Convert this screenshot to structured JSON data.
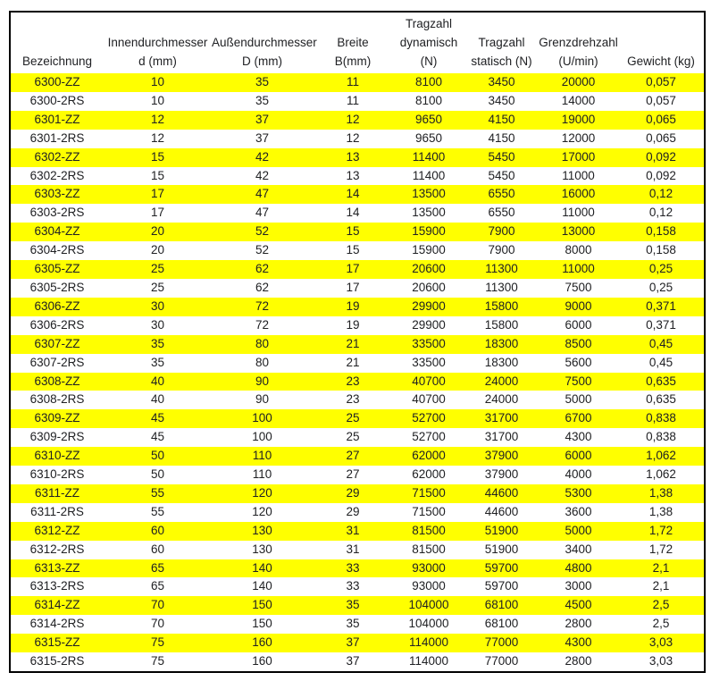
{
  "colors": {
    "highlight": "#ffff00",
    "text": "#202124",
    "border": "#000000",
    "background": "#ffffff"
  },
  "chart_data": {
    "type": "table",
    "title": "",
    "columns": [
      {
        "label": "Bezeichnung"
      },
      {
        "label": "Innendurchmesser\nd (mm)"
      },
      {
        "label": "Außendurchmesser\nD (mm)"
      },
      {
        "label": "Breite\nB(mm)"
      },
      {
        "label": "Tragzahl\ndynamisch\n(N)"
      },
      {
        "label": "Tragzahl\nstatisch (N)"
      },
      {
        "label": "Grenzdrehzahl\n(U/min)"
      },
      {
        "label": "Gewicht (kg)"
      }
    ],
    "rows": [
      {
        "highlight": true,
        "cells": [
          "6300-ZZ",
          "10",
          "35",
          "11",
          "8100",
          "3450",
          "20000",
          "0,057"
        ]
      },
      {
        "highlight": false,
        "cells": [
          "6300-2RS",
          "10",
          "35",
          "11",
          "8100",
          "3450",
          "14000",
          "0,057"
        ]
      },
      {
        "highlight": true,
        "cells": [
          "6301-ZZ",
          "12",
          "37",
          "12",
          "9650",
          "4150",
          "19000",
          "0,065"
        ]
      },
      {
        "highlight": false,
        "cells": [
          "6301-2RS",
          "12",
          "37",
          "12",
          "9650",
          "4150",
          "12000",
          "0,065"
        ]
      },
      {
        "highlight": true,
        "cells": [
          "6302-ZZ",
          "15",
          "42",
          "13",
          "11400",
          "5450",
          "17000",
          "0,092"
        ]
      },
      {
        "highlight": false,
        "cells": [
          "6302-2RS",
          "15",
          "42",
          "13",
          "11400",
          "5450",
          "11000",
          "0,092"
        ]
      },
      {
        "highlight": true,
        "cells": [
          "6303-ZZ",
          "17",
          "47",
          "14",
          "13500",
          "6550",
          "16000",
          "0,12"
        ]
      },
      {
        "highlight": false,
        "cells": [
          "6303-2RS",
          "17",
          "47",
          "14",
          "13500",
          "6550",
          "11000",
          "0,12"
        ]
      },
      {
        "highlight": true,
        "cells": [
          "6304-ZZ",
          "20",
          "52",
          "15",
          "15900",
          "7900",
          "13000",
          "0,158"
        ]
      },
      {
        "highlight": false,
        "cells": [
          "6304-2RS",
          "20",
          "52",
          "15",
          "15900",
          "7900",
          "8000",
          "0,158"
        ]
      },
      {
        "highlight": true,
        "cells": [
          "6305-ZZ",
          "25",
          "62",
          "17",
          "20600",
          "11300",
          "11000",
          "0,25"
        ]
      },
      {
        "highlight": false,
        "cells": [
          "6305-2RS",
          "25",
          "62",
          "17",
          "20600",
          "11300",
          "7500",
          "0,25"
        ]
      },
      {
        "highlight": true,
        "cells": [
          "6306-ZZ",
          "30",
          "72",
          "19",
          "29900",
          "15800",
          "9000",
          "0,371"
        ]
      },
      {
        "highlight": false,
        "cells": [
          "6306-2RS",
          "30",
          "72",
          "19",
          "29900",
          "15800",
          "6000",
          "0,371"
        ]
      },
      {
        "highlight": true,
        "cells": [
          "6307-ZZ",
          "35",
          "80",
          "21",
          "33500",
          "18300",
          "8500",
          "0,45"
        ]
      },
      {
        "highlight": false,
        "cells": [
          "6307-2RS",
          "35",
          "80",
          "21",
          "33500",
          "18300",
          "5600",
          "0,45"
        ]
      },
      {
        "highlight": true,
        "cells": [
          "6308-ZZ",
          "40",
          "90",
          "23",
          "40700",
          "24000",
          "7500",
          "0,635"
        ]
      },
      {
        "highlight": false,
        "cells": [
          "6308-2RS",
          "40",
          "90",
          "23",
          "40700",
          "24000",
          "5000",
          "0,635"
        ]
      },
      {
        "highlight": true,
        "cells": [
          "6309-ZZ",
          "45",
          "100",
          "25",
          "52700",
          "31700",
          "6700",
          "0,838"
        ]
      },
      {
        "highlight": false,
        "cells": [
          "6309-2RS",
          "45",
          "100",
          "25",
          "52700",
          "31700",
          "4300",
          "0,838"
        ]
      },
      {
        "highlight": true,
        "cells": [
          "6310-ZZ",
          "50",
          "110",
          "27",
          "62000",
          "37900",
          "6000",
          "1,062"
        ]
      },
      {
        "highlight": false,
        "cells": [
          "6310-2RS",
          "50",
          "110",
          "27",
          "62000",
          "37900",
          "4000",
          "1,062"
        ]
      },
      {
        "highlight": true,
        "cells": [
          "6311-ZZ",
          "55",
          "120",
          "29",
          "71500",
          "44600",
          "5300",
          "1,38"
        ]
      },
      {
        "highlight": false,
        "cells": [
          "6311-2RS",
          "55",
          "120",
          "29",
          "71500",
          "44600",
          "3600",
          "1,38"
        ]
      },
      {
        "highlight": true,
        "cells": [
          "6312-ZZ",
          "60",
          "130",
          "31",
          "81500",
          "51900",
          "5000",
          "1,72"
        ]
      },
      {
        "highlight": false,
        "cells": [
          "6312-2RS",
          "60",
          "130",
          "31",
          "81500",
          "51900",
          "3400",
          "1,72"
        ]
      },
      {
        "highlight": true,
        "cells": [
          "6313-ZZ",
          "65",
          "140",
          "33",
          "93000",
          "59700",
          "4800",
          "2,1"
        ]
      },
      {
        "highlight": false,
        "cells": [
          "6313-2RS",
          "65",
          "140",
          "33",
          "93000",
          "59700",
          "3000",
          "2,1"
        ]
      },
      {
        "highlight": true,
        "cells": [
          "6314-ZZ",
          "70",
          "150",
          "35",
          "104000",
          "68100",
          "4500",
          "2,5"
        ]
      },
      {
        "highlight": false,
        "cells": [
          "6314-2RS",
          "70",
          "150",
          "35",
          "104000",
          "68100",
          "2800",
          "2,5"
        ]
      },
      {
        "highlight": true,
        "cells": [
          "6315-ZZ",
          "75",
          "160",
          "37",
          "114000",
          "77000",
          "4300",
          "3,03"
        ]
      },
      {
        "highlight": false,
        "cells": [
          "6315-2RS",
          "75",
          "160",
          "37",
          "114000",
          "77000",
          "2800",
          "3,03"
        ]
      }
    ]
  }
}
